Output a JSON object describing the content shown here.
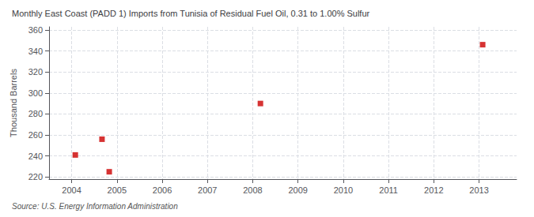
{
  "chart_data": {
    "type": "scatter",
    "title": "Monthly East Coast (PADD 1) Imports from Tunisia of Residual Fuel Oil, 0.31 to 1.00% Sulfur",
    "ylabel": "Thousand Barrels",
    "source": "Source: U.S. Energy Information Administration",
    "x": [
      2004.08,
      2004.67,
      2004.83,
      2008.17,
      2013.08
    ],
    "values": [
      241,
      256,
      225,
      290,
      346
    ],
    "color": "#cc0000",
    "marker": "square",
    "xlim": [
      2003.5,
      2013.83
    ],
    "xticks": [
      2004,
      2005,
      2006,
      2007,
      2008,
      2009,
      2010,
      2011,
      2012,
      2013
    ],
    "ylim": [
      218,
      363
    ],
    "yticks": [
      220,
      240,
      260,
      280,
      300,
      320,
      340,
      360
    ],
    "grid": true
  }
}
